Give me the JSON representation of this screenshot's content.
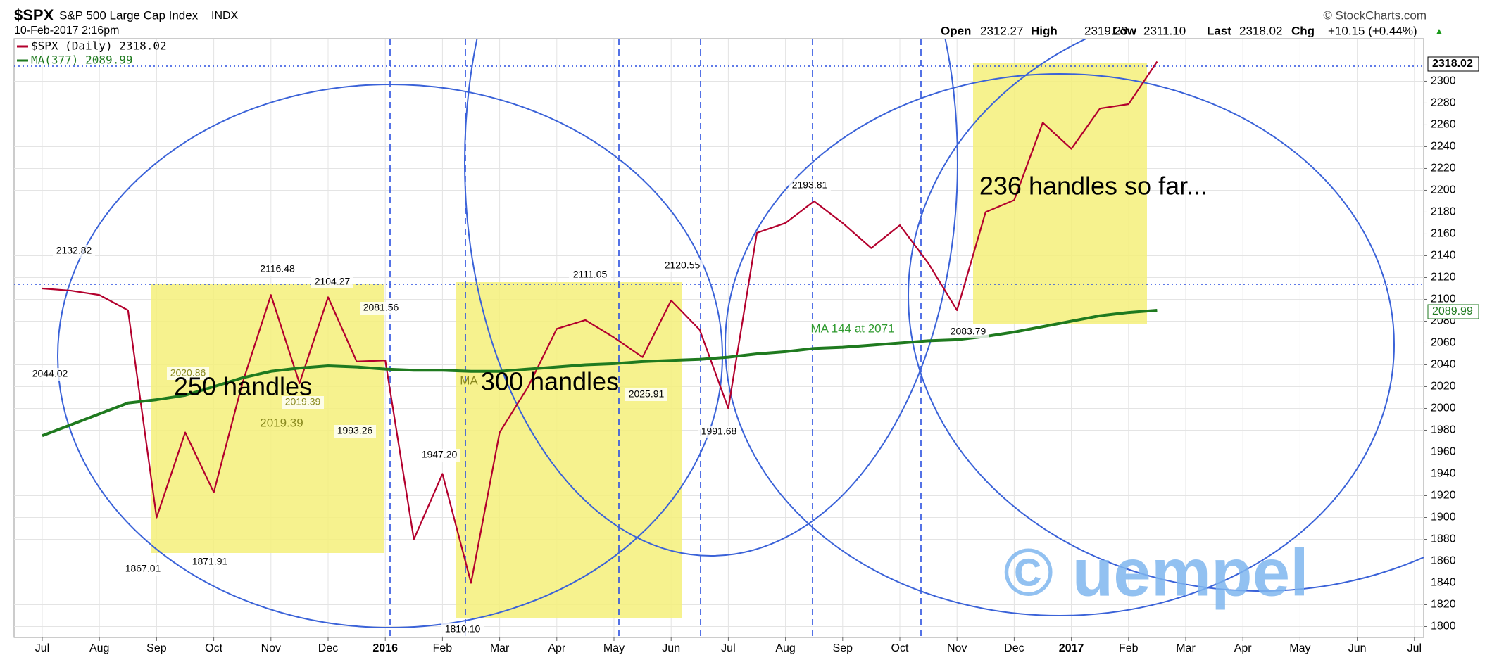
{
  "header": {
    "symbol": "$SPX",
    "name": "S&P 500 Large Cap Index",
    "exchange": "INDX",
    "timestamp": "10-Feb-2017 2:16pm",
    "source": "© StockCharts.com",
    "quote": [
      {
        "label": "Open",
        "value": "2312.27"
      },
      {
        "label": "High",
        "value": "2319.23"
      },
      {
        "label": "Low",
        "value": "2311.10"
      },
      {
        "label": "Last",
        "value": "2318.02"
      },
      {
        "label": "Chg",
        "value": "+10.15 (+0.44%)"
      }
    ]
  },
  "chart_data": {
    "type": "line",
    "categories": [
      "Jul",
      null,
      "Aug",
      null,
      "Sep",
      null,
      "Oct",
      null,
      "Nov",
      null,
      "Dec",
      null,
      "2016",
      null,
      "Feb",
      null,
      "Mar",
      null,
      "Apr",
      null,
      "May",
      null,
      "Jun",
      null,
      "Jul",
      null,
      "Aug",
      null,
      "Sep",
      null,
      "Oct",
      null,
      "Nov",
      null,
      "Dec",
      null,
      "2017",
      null,
      "Feb",
      null,
      "Mar",
      null,
      "Apr",
      null,
      "May",
      null,
      "Jun",
      null,
      "Jul",
      null
    ],
    "series": [
      {
        "name": "$SPX (Daily) 2318.02",
        "color": "#b3002d",
        "values": [
          2110,
          2108,
          2104,
          2090,
          1900,
          1978,
          1923,
          2023,
          2104,
          2023,
          2102,
          2043,
          2044,
          1880,
          1940,
          1840,
          1978,
          2020,
          2073,
          2081,
          2065,
          2047,
          2099,
          2072,
          2000,
          2161,
          2170,
          2190,
          2170,
          2147,
          2168,
          2133,
          2090,
          2180,
          2191,
          2262,
          2238,
          2275,
          2279,
          2318.02,
          null,
          null,
          null,
          null,
          null,
          null,
          null,
          null,
          null,
          null
        ]
      },
      {
        "name": "MA(377) 2089.99",
        "color": "#1f7a1f",
        "values": [
          1975,
          1985,
          1995,
          2005,
          2008,
          2012,
          2020,
          2028,
          2034,
          2037,
          2039,
          2038,
          2036,
          2035,
          2035,
          2034,
          2034,
          2036,
          2038,
          2040,
          2041,
          2043,
          2044,
          2045,
          2047,
          2050,
          2052,
          2055,
          2056,
          2058,
          2060,
          2062,
          2063,
          2066,
          2070,
          2075,
          2080,
          2085,
          2088,
          2089.99,
          null,
          null,
          null,
          null,
          null,
          null,
          null,
          null,
          null,
          null
        ]
      }
    ],
    "ylim": [
      1790,
      2339
    ],
    "yticks": [
      1800,
      1820,
      1840,
      1860,
      1880,
      1900,
      1920,
      1940,
      1960,
      1980,
      2000,
      2020,
      2040,
      2060,
      2080,
      2100,
      2120,
      2140,
      2160,
      2180,
      2200,
      2220,
      2240,
      2260,
      2280,
      2300
    ],
    "grid": true,
    "price_tags": [
      "2318.02",
      "2089.99"
    ],
    "annotations": [
      "2132.82",
      "2044.02",
      "2116.48",
      "2104.27",
      "2081.56",
      "2020.86",
      "2019.39",
      "2019.39",
      "1993.26",
      "1867.01",
      "1871.91",
      "1947.20",
      "1810.10",
      "2111.05",
      "2120.55",
      "2025.91",
      "1991.68",
      "2193.81",
      "2083.79",
      "MA 144 at 2071",
      "MA",
      "250 handles",
      "300 handles",
      "236 handles so far...",
      "© uempel"
    ]
  }
}
